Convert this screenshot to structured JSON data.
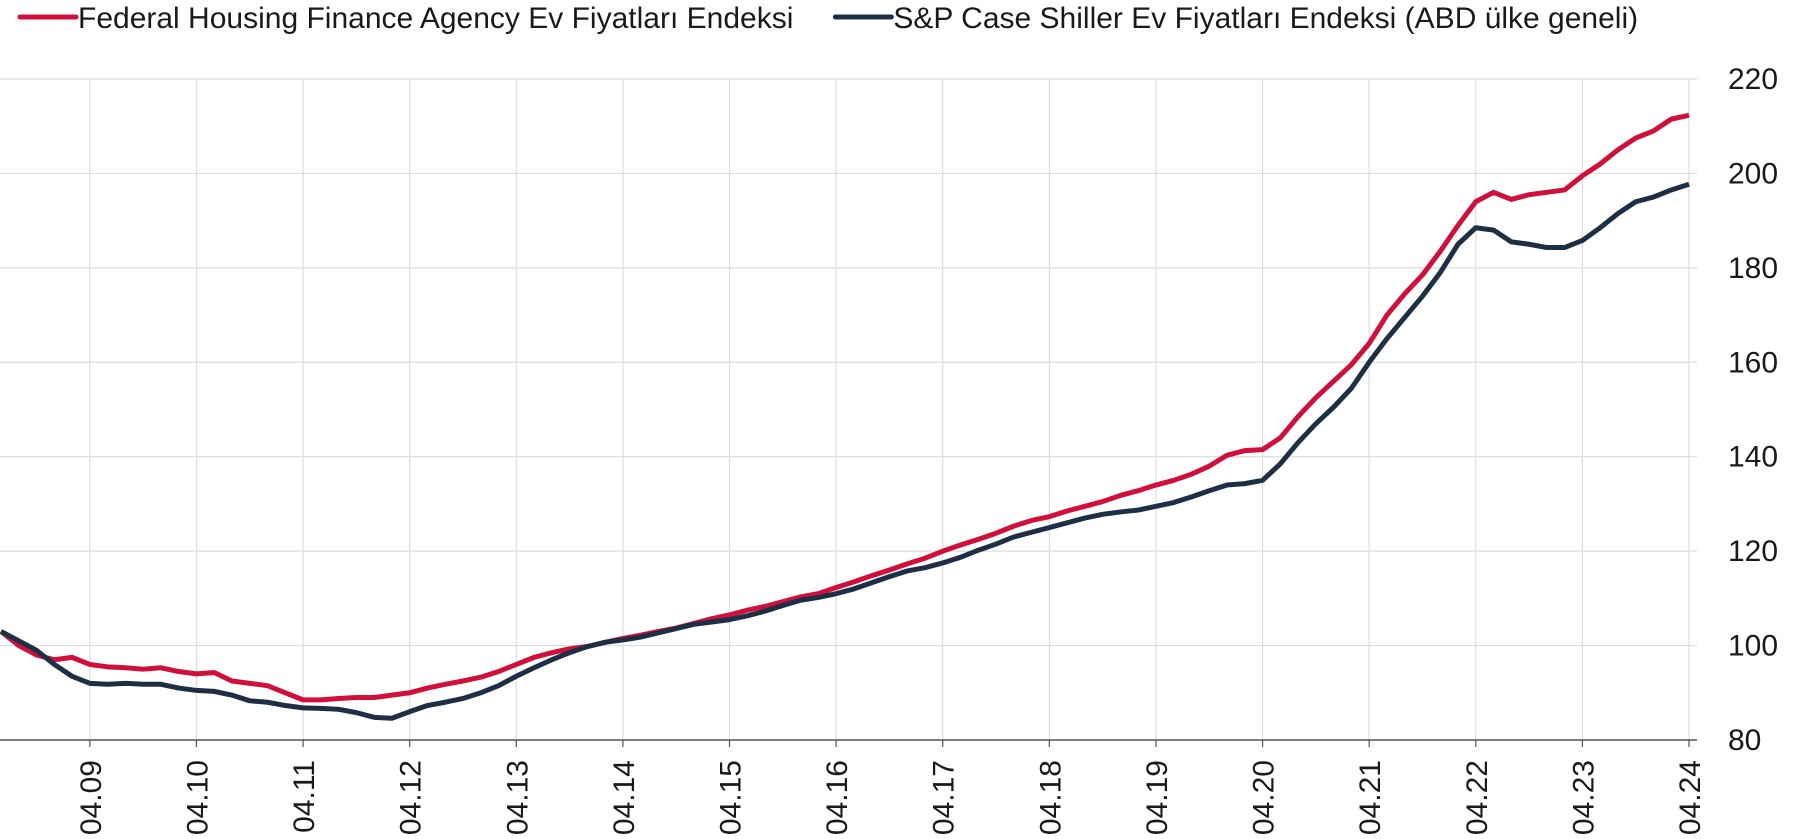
{
  "chart_data": {
    "type": "line",
    "categories": [
      null,
      null,
      null,
      null,
      null,
      "04.09",
      null,
      null,
      null,
      null,
      null,
      "04.10",
      null,
      null,
      null,
      null,
      null,
      "04.11",
      null,
      null,
      null,
      null,
      null,
      "04.12",
      null,
      null,
      null,
      null,
      null,
      "04.13",
      null,
      null,
      null,
      null,
      null,
      "04.14",
      null,
      null,
      null,
      null,
      null,
      "04.15",
      null,
      null,
      null,
      null,
      null,
      "04.16",
      null,
      null,
      null,
      null,
      null,
      "04.17",
      null,
      null,
      null,
      null,
      null,
      "04.18",
      null,
      null,
      null,
      null,
      null,
      "04.19",
      null,
      null,
      null,
      null,
      null,
      "04.20",
      null,
      null,
      null,
      null,
      null,
      "04.21",
      null,
      null,
      null,
      null,
      null,
      "04.22",
      null,
      null,
      null,
      null,
      null,
      "04.23",
      null,
      null,
      null,
      null,
      null,
      "04.24"
    ],
    "series": [
      {
        "name": "Federal Housing Finance Agency Ev Fiyatları Endeksi",
        "color": "#d0103a",
        "values": [
          103,
          100,
          98,
          97,
          97.5,
          96,
          95.5,
          95.3,
          95,
          95.3,
          94.5,
          94,
          94.3,
          92.5,
          92,
          91.5,
          90,
          88.5,
          88.5,
          88.8,
          89,
          89,
          89.5,
          90,
          91,
          91.8,
          92.5,
          93.3,
          94.5,
          96,
          97.5,
          98.5,
          99.3,
          99.8,
          100.7,
          101.5,
          102.2,
          103,
          103.7,
          104.7,
          105.7,
          106.5,
          107.5,
          108.3,
          109.3,
          110.3,
          111,
          112.3,
          113.5,
          114.8,
          116,
          117.3,
          118.5,
          120,
          121.3,
          122.5,
          123.8,
          125.3,
          126.5,
          127.3,
          128.5,
          129.5,
          130.5,
          131.8,
          132.8,
          134,
          135,
          136.3,
          138,
          140.3,
          141.3,
          141.5,
          144,
          148.5,
          152.5,
          156,
          159.5,
          164,
          170,
          174.5,
          178.5,
          183.5,
          189,
          194,
          196,
          194.5,
          195.5,
          196,
          196.5,
          199.5,
          202,
          205,
          207.5,
          209,
          211.5,
          212.3
        ]
      },
      {
        "name": "S&P Case Shiller Ev Fiyatları Endeksi (ABD ülke geneli)",
        "color": "#1c2f45",
        "values": [
          103,
          101,
          99,
          96,
          93.5,
          92,
          91.8,
          92,
          91.8,
          91.8,
          91,
          90.5,
          90.3,
          89.5,
          88.3,
          88,
          87.3,
          86.8,
          86.7,
          86.5,
          85.8,
          84.8,
          84.6,
          86,
          87.3,
          88,
          88.8,
          90,
          91.5,
          93.5,
          95.3,
          97,
          98.5,
          99.8,
          100.7,
          101.2,
          101.8,
          102.7,
          103.6,
          104.5,
          105,
          105.5,
          106.3,
          107.3,
          108.5,
          109.6,
          110.2,
          111,
          112,
          113.3,
          114.6,
          115.8,
          116.5,
          117.5,
          118.7,
          120.2,
          121.5,
          123,
          124,
          125,
          126,
          127,
          127.8,
          128.3,
          128.7,
          129.5,
          130.3,
          131.5,
          132.8,
          134,
          134.3,
          135,
          138.5,
          143,
          147,
          150.5,
          154.5,
          160,
          165,
          169.5,
          174,
          179,
          185,
          188.5,
          188,
          185.5,
          185,
          184.3,
          184.3,
          185.8,
          188.5,
          191.5,
          194,
          195,
          196.5,
          197.7
        ]
      }
    ],
    "ylim": [
      80,
      220
    ],
    "yticks": [
      80,
      100,
      120,
      140,
      160,
      180,
      200,
      220
    ],
    "grid": true,
    "legend": "top"
  }
}
